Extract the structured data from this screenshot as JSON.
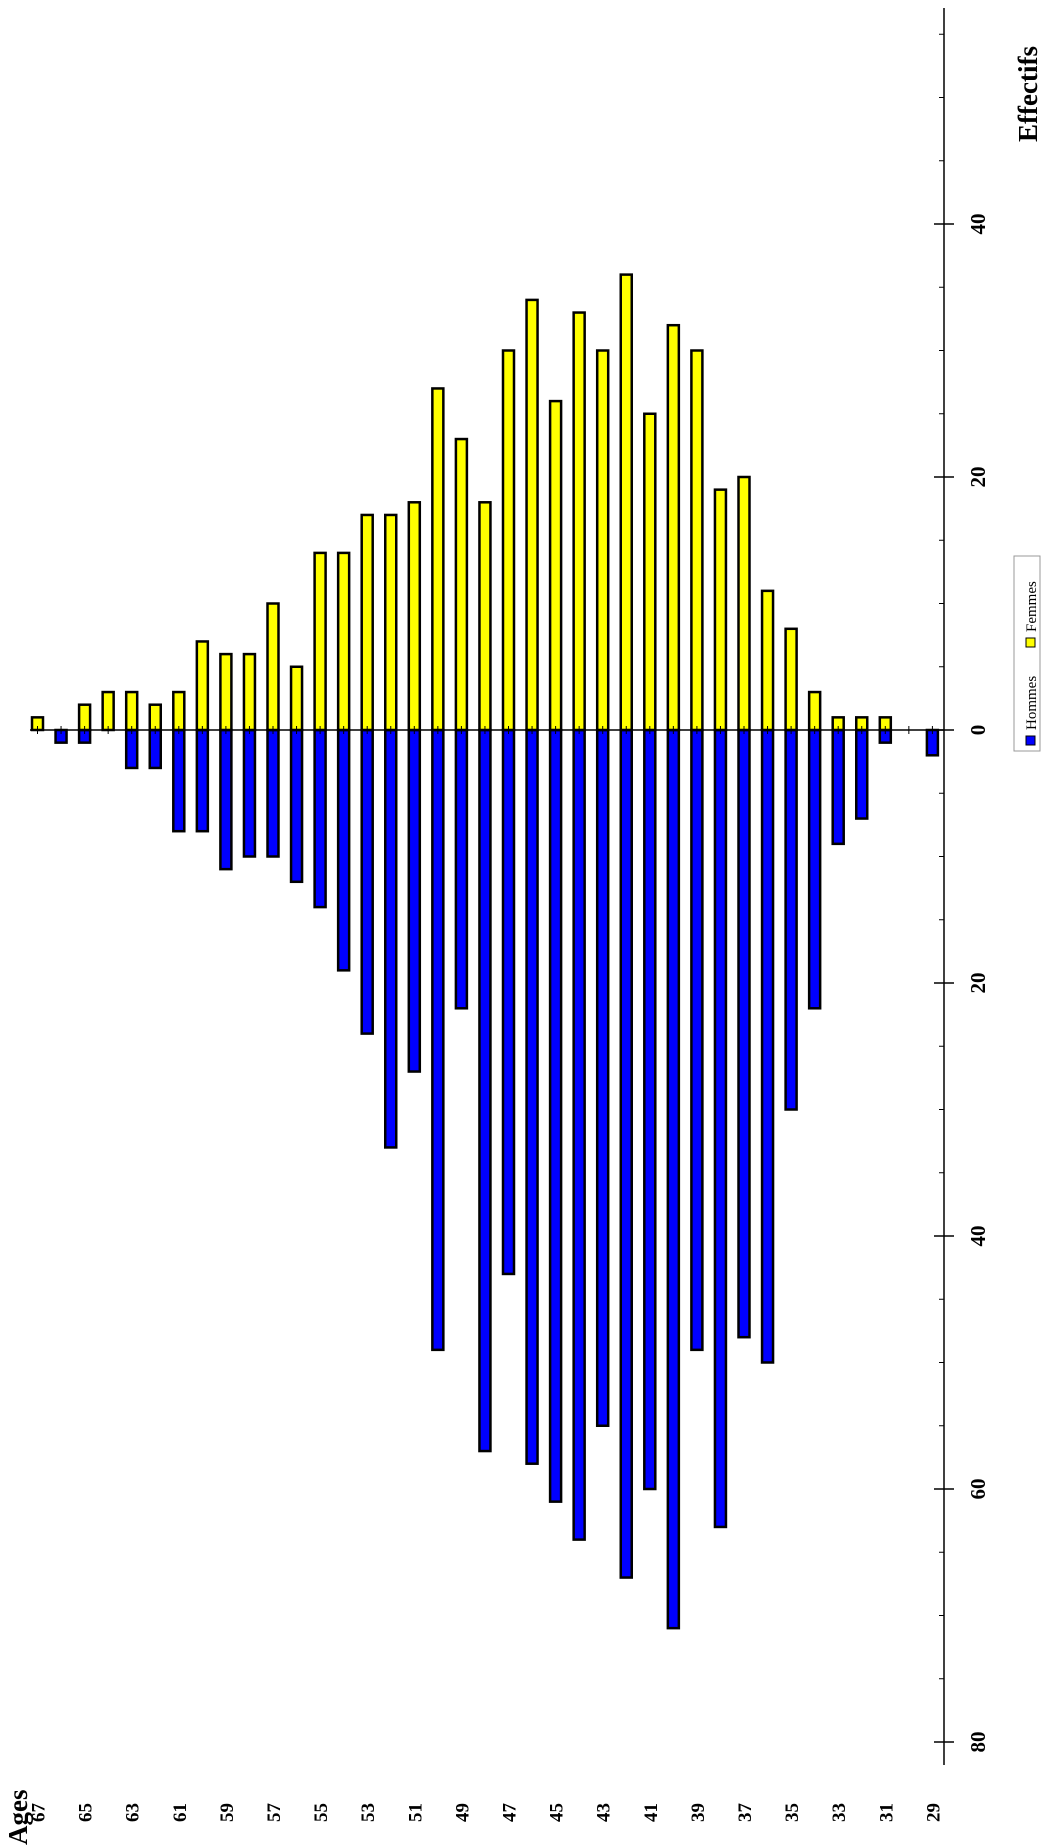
{
  "chart_data": {
    "type": "bar",
    "orientation": "rotated population pyramid (ages along bottom, counts vertical)",
    "ages": [
      67,
      66,
      65,
      64,
      63,
      62,
      61,
      60,
      59,
      58,
      57,
      56,
      55,
      54,
      53,
      52,
      51,
      50,
      49,
      48,
      47,
      46,
      45,
      44,
      43,
      42,
      41,
      40,
      39,
      38,
      37,
      36,
      35,
      34,
      33,
      32,
      31,
      30,
      29
    ],
    "age_tick_labels": [
      "67",
      "65",
      "63",
      "61",
      "59",
      "57",
      "55",
      "53",
      "51",
      "49",
      "47",
      "45",
      "43",
      "41",
      "39",
      "37",
      "35",
      "33",
      "31",
      "29"
    ],
    "series": [
      {
        "name": "Hommes",
        "color": "#0000ff",
        "values": [
          0,
          1,
          1,
          0,
          3,
          3,
          8,
          8,
          11,
          10,
          10,
          12,
          14,
          19,
          24,
          33,
          27,
          49,
          22,
          57,
          43,
          58,
          61,
          64,
          55,
          67,
          60,
          71,
          49,
          63,
          48,
          50,
          30,
          22,
          9,
          7,
          1,
          0,
          2
        ]
      },
      {
        "name": "Femmes",
        "color": "#ffff00",
        "values": [
          1,
          0,
          2,
          3,
          3,
          2,
          3,
          7,
          6,
          6,
          10,
          5,
          14,
          14,
          17,
          17,
          18,
          27,
          23,
          18,
          30,
          34,
          26,
          33,
          30,
          36,
          25,
          32,
          30,
          19,
          20,
          11,
          8,
          3,
          1,
          1,
          1,
          0,
          0
        ]
      }
    ],
    "hommes_axis_ticks": [
      "0",
      "20",
      "40",
      "60",
      "80"
    ],
    "femmes_axis_ticks": [
      "0",
      "20",
      "40",
      "60"
    ],
    "hommes_range": [
      0,
      80
    ],
    "femmes_range": [
      0,
      60
    ],
    "xlabel": "Ages",
    "ylabel": "Effectifs",
    "legend_position": "right-center",
    "grid": false
  }
}
